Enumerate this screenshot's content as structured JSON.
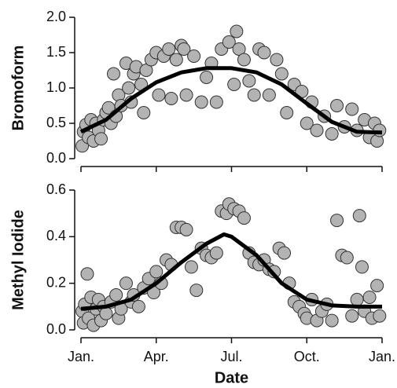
{
  "chart_data": [
    {
      "type": "scatter",
      "ylabel": "Bromoform",
      "color": "#b3b3b3",
      "xlim": [
        0,
        12
      ],
      "xticks": [
        0,
        3,
        6,
        9,
        12
      ],
      "ylim": [
        0,
        2
      ],
      "yticks": [
        {
          "value": 0,
          "label": "0.0"
        },
        0.5,
        {
          "value": 1,
          "label": "1.0"
        },
        1.5,
        {
          "value": 2,
          "label": "2.0"
        }
      ],
      "x": [
        0.05,
        0.1,
        0.2,
        0.3,
        0.4,
        0.5,
        0.6,
        0.7,
        0.8,
        0.9,
        1.0,
        1.1,
        1.2,
        1.3,
        1.4,
        1.5,
        1.6,
        1.8,
        1.9,
        2.0,
        2.1,
        2.2,
        2.4,
        2.5,
        2.6,
        2.8,
        3.0,
        3.1,
        3.3,
        3.5,
        3.6,
        3.8,
        4.0,
        4.1,
        4.2,
        4.5,
        4.8,
        5.0,
        5.2,
        5.4,
        5.6,
        5.9,
        6.1,
        6.2,
        6.3,
        6.5,
        6.7,
        6.9,
        7.1,
        7.3,
        7.5,
        7.8,
        8.0,
        8.2,
        8.5,
        8.8,
        9.0,
        9.2,
        9.4,
        9.7,
        10.0,
        10.2,
        10.5,
        10.8,
        11.0,
        11.3,
        11.5,
        11.7,
        11.8,
        11.9
      ],
      "values": [
        0.18,
        0.38,
        0.48,
        0.3,
        0.55,
        0.25,
        0.5,
        0.4,
        0.28,
        0.55,
        0.65,
        0.72,
        0.5,
        1.2,
        0.6,
        0.9,
        0.75,
        1.35,
        1.0,
        0.8,
        1.2,
        1.3,
        1.05,
        0.65,
        1.25,
        1.4,
        1.5,
        0.9,
        1.45,
        1.55,
        0.85,
        1.4,
        1.6,
        1.55,
        0.9,
        1.45,
        0.8,
        1.15,
        1.35,
        0.8,
        1.55,
        1.65,
        1.05,
        1.8,
        1.55,
        1.4,
        1.1,
        0.9,
        1.55,
        1.5,
        0.9,
        1.4,
        1.2,
        0.65,
        1.05,
        0.95,
        0.5,
        0.8,
        0.4,
        0.6,
        0.35,
        0.75,
        0.45,
        0.7,
        0.4,
        0.55,
        0.3,
        0.5,
        0.25,
        0.4
      ],
      "fit": {
        "color": "#000000",
        "x": [
          0,
          1,
          2,
          3,
          4,
          5,
          6,
          7,
          8,
          9,
          10,
          11,
          12
        ],
        "values": [
          0.38,
          0.55,
          0.85,
          1.08,
          1.22,
          1.28,
          1.28,
          1.22,
          1.05,
          0.78,
          0.52,
          0.38,
          0.37
        ]
      }
    },
    {
      "type": "scatter",
      "ylabel": "Methyl Iodide",
      "xlabel": "Date",
      "color": "#b3b3b3",
      "xlim": [
        0,
        12
      ],
      "xticks": [
        {
          "value": 0,
          "label": "Jan."
        },
        {
          "value": 3,
          "label": "Apr."
        },
        {
          "value": 6,
          "label": "Jul."
        },
        {
          "value": 9,
          "label": "Oct."
        },
        {
          "value": 12,
          "label": "Jan."
        }
      ],
      "ylim": [
        0,
        0.6
      ],
      "yticks": [
        {
          "value": 0,
          "label": "0.0"
        },
        0.2,
        0.4,
        0.6
      ],
      "x": [
        0.05,
        0.1,
        0.15,
        0.25,
        0.3,
        0.4,
        0.5,
        0.6,
        0.7,
        0.8,
        0.9,
        1.0,
        1.2,
        1.4,
        1.5,
        1.6,
        1.8,
        2.0,
        2.1,
        2.3,
        2.5,
        2.7,
        2.9,
        3.0,
        3.2,
        3.4,
        3.6,
        3.8,
        4.0,
        4.2,
        4.4,
        4.6,
        4.8,
        5.0,
        5.2,
        5.4,
        5.6,
        5.8,
        5.9,
        6.1,
        6.3,
        6.5,
        6.7,
        6.9,
        7.1,
        7.3,
        7.5,
        7.7,
        7.9,
        8.1,
        8.3,
        8.5,
        8.7,
        8.9,
        9.0,
        9.2,
        9.4,
        9.6,
        9.8,
        10.0,
        10.2,
        10.4,
        10.6,
        10.8,
        11.0,
        11.1,
        11.2,
        11.3,
        11.5,
        11.6,
        11.8,
        11.9
      ],
      "values": [
        0.08,
        0.03,
        0.11,
        0.24,
        0.05,
        0.14,
        0.02,
        0.09,
        0.13,
        0.04,
        0.1,
        0.07,
        0.12,
        0.15,
        0.05,
        0.09,
        0.2,
        0.12,
        0.15,
        0.1,
        0.18,
        0.22,
        0.16,
        0.25,
        0.2,
        0.3,
        0.28,
        0.44,
        0.44,
        0.43,
        0.27,
        0.17,
        0.35,
        0.32,
        0.31,
        0.33,
        0.51,
        0.5,
        0.54,
        0.52,
        0.51,
        0.48,
        0.33,
        0.29,
        0.28,
        0.3,
        0.26,
        0.25,
        0.35,
        0.33,
        0.2,
        0.12,
        0.1,
        0.07,
        0.05,
        0.13,
        0.04,
        0.08,
        0.11,
        0.04,
        0.47,
        0.32,
        0.31,
        0.06,
        0.13,
        0.49,
        0.27,
        0.08,
        0.14,
        0.05,
        0.19,
        0.06
      ],
      "fit": {
        "color": "#000000",
        "x": [
          0,
          1,
          2,
          3,
          4,
          5,
          5.7,
          6,
          7,
          8,
          9,
          10,
          11,
          12
        ],
        "values": [
          0.09,
          0.1,
          0.13,
          0.2,
          0.29,
          0.37,
          0.41,
          0.4,
          0.32,
          0.2,
          0.13,
          0.105,
          0.1,
          0.1
        ]
      }
    }
  ]
}
